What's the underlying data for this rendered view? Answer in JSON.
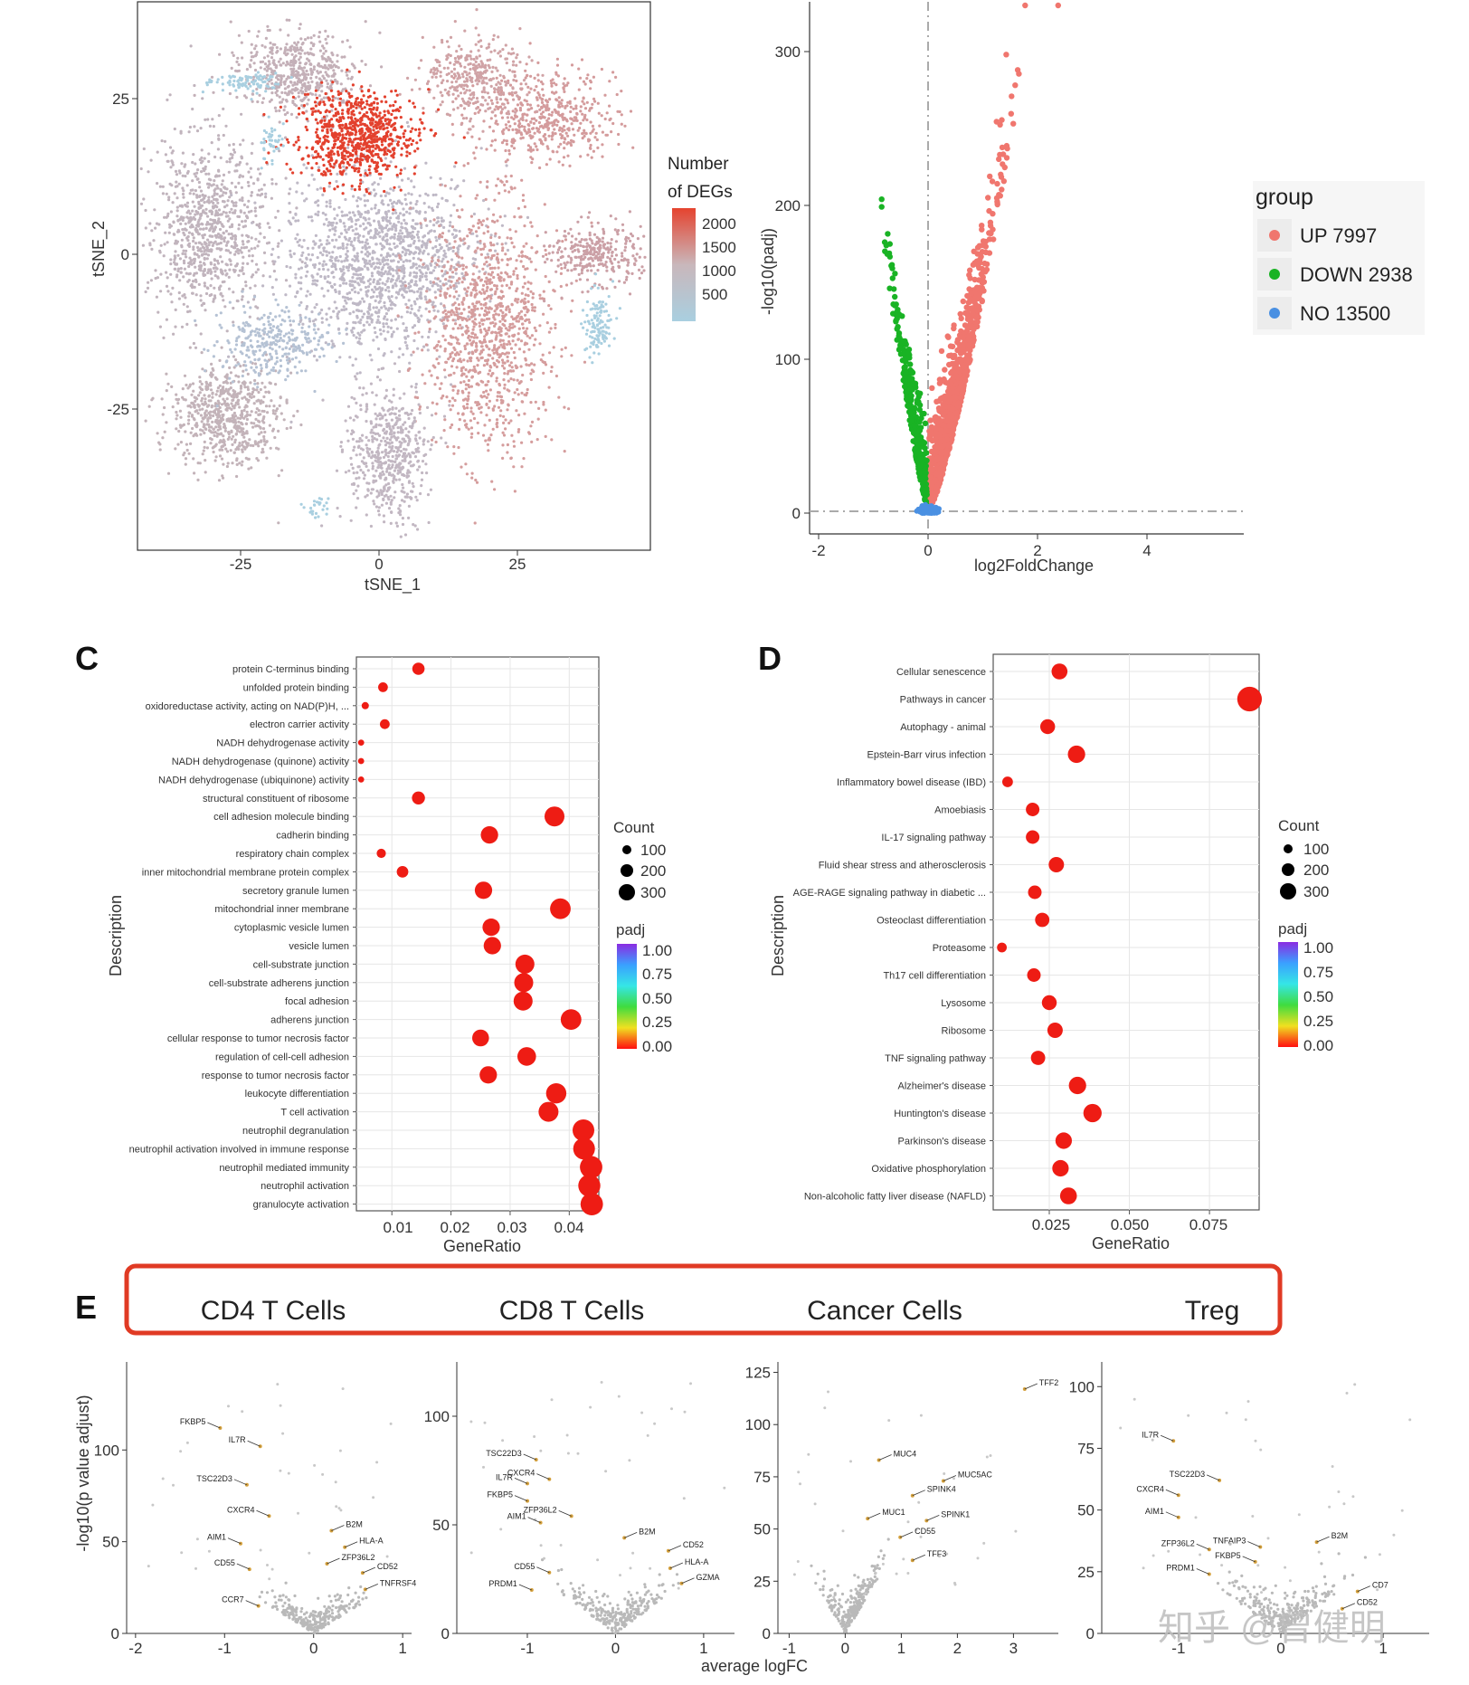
{
  "chart_data": [
    {
      "id": "tsne",
      "type": "scatter",
      "title": "",
      "xlabel": "tSNE_1",
      "ylabel": "tSNE_2",
      "xticks": [
        "-25",
        "0",
        "25"
      ],
      "yticks": [
        "25",
        "0",
        "-25"
      ],
      "colorbar": {
        "title_line1": "Number",
        "title_line2": "of DEGs",
        "ticks": [
          "2000",
          "1500",
          "1000",
          "500"
        ],
        "high_color": "#e5432f",
        "mid_color": "#c9b7bb",
        "low_color": "#a9cfe0"
      }
    },
    {
      "id": "volcano",
      "type": "scatter",
      "title": "",
      "xlabel": "log2FoldChange",
      "ylabel": "-log10(padj)",
      "xticks": [
        "-2",
        "0",
        "2",
        "4"
      ],
      "yticks": [
        "300",
        "200",
        "100",
        "0"
      ],
      "xlim": [
        -2,
        5.7
      ],
      "ylim": [
        0,
        330
      ],
      "legend": {
        "title": "group",
        "position": "right",
        "items": [
          {
            "label": "UP 7997",
            "color": "#f0766e"
          },
          {
            "label": "DOWN 2938",
            "color": "#19b324"
          },
          {
            "label": "NO 13500",
            "color": "#4a90e2"
          }
        ]
      }
    },
    {
      "id": "go",
      "type": "scatter",
      "panel_label": "C",
      "xlabel": "GeneRatio",
      "ylabel": "Description",
      "xticks": [
        "0.01",
        "0.02",
        "0.03",
        "0.04"
      ],
      "xlim": [
        0.004,
        0.045
      ],
      "categories": [
        "protein C-terminus binding",
        "unfolded protein binding",
        "oxidoreductase activity, acting on NAD(P)H, ...",
        "electron carrier activity",
        "NADH dehydrogenase activity",
        "NADH dehydrogenase (quinone) activity",
        "NADH dehydrogenase (ubiquinone) activity",
        "structural constituent of ribosome",
        "cell adhesion molecule binding",
        "cadherin binding",
        "respiratory chain complex",
        "inner mitochondrial membrane protein complex",
        "secretory granule lumen",
        "mitochondrial inner membrane",
        "cytoplasmic vesicle lumen",
        "vesicle lumen",
        "cell-substrate junction",
        "cell-substrate adherens junction",
        "focal adhesion",
        "adherens junction",
        "cellular response to tumor necrosis factor",
        "regulation of cell-cell adhesion",
        "response to tumor necrosis factor",
        "leukocyte differentiation",
        "T cell activation",
        "neutrophil degranulation",
        "neutrophil activation involved in immune response",
        "neutrophil mediated immunity",
        "neutrophil activation",
        "granulocyte activation"
      ],
      "values": [
        0.0145,
        0.0085,
        0.0055,
        0.0088,
        0.0048,
        0.0048,
        0.0048,
        0.0145,
        0.0375,
        0.0265,
        0.0082,
        0.0118,
        0.0255,
        0.0385,
        0.0268,
        0.027,
        0.0325,
        0.0323,
        0.0322,
        0.0403,
        0.025,
        0.0328,
        0.0263,
        0.0378,
        0.0365,
        0.0424,
        0.0425,
        0.0437,
        0.0434,
        0.0438
      ],
      "count": [
        60,
        30,
        10,
        30,
        5,
        5,
        5,
        70,
        210,
        150,
        25,
        50,
        150,
        230,
        150,
        150,
        190,
        190,
        190,
        230,
        140,
        180,
        150,
        220,
        210,
        260,
        260,
        280,
        270,
        280
      ],
      "legend_count": {
        "title": "Count",
        "items": [
          "100",
          "200",
          "300"
        ]
      },
      "legend_padj": {
        "title": "padj",
        "ticks": [
          "1.00",
          "0.75",
          "0.50",
          "0.25",
          "0.00"
        ]
      }
    },
    {
      "id": "kegg",
      "type": "scatter",
      "panel_label": "D",
      "xlabel": "GeneRatio",
      "ylabel": "Description",
      "xticks": [
        "0.025",
        "0.050",
        "0.075"
      ],
      "xlim": [
        0.0075,
        0.0905
      ],
      "categories": [
        "Cellular senescence",
        "Pathways in cancer",
        "Autophagy - animal",
        "Epstein-Barr virus infection",
        "Inflammatory bowel disease (IBD)",
        "Amoebiasis",
        "IL-17 signaling pathway",
        "Fluid shear stress and atherosclerosis",
        "AGE-RAGE signaling pathway in diabetic ...",
        "Osteoclast differentiation",
        "Proteasome",
        "Th17 cell differentiation",
        "Lysosome",
        "Ribosome",
        "TNF signaling pathway",
        "Alzheimer's disease",
        "Huntington's disease",
        "Parkinson's disease",
        "Oxidative phosphorylation",
        "Non-alcoholic fatty liver disease (NAFLD)"
      ],
      "values": [
        0.0282,
        0.0875,
        0.0245,
        0.0335,
        0.012,
        0.0198,
        0.0198,
        0.0272,
        0.0205,
        0.0228,
        0.0102,
        0.0202,
        0.025,
        0.0268,
        0.0215,
        0.0338,
        0.0385,
        0.0295,
        0.0285,
        0.031
      ],
      "count": [
        120,
        350,
        100,
        150,
        40,
        80,
        80,
        110,
        80,
        90,
        30,
        80,
        100,
        110,
        90,
        150,
        170,
        130,
        130,
        140
      ],
      "legend_count": {
        "title": "Count",
        "items": [
          "100",
          "200",
          "300"
        ]
      },
      "legend_padj": {
        "title": "padj",
        "ticks": [
          "1.00",
          "0.75",
          "0.50",
          "0.25",
          "0.00"
        ]
      }
    },
    {
      "id": "cd4",
      "type": "scatter",
      "title": "CD4 T Cells",
      "xticks": [
        "-2",
        "-1",
        "0",
        "1"
      ],
      "yticks": [
        "100",
        "50",
        "0"
      ],
      "xlim": [
        -2.1,
        1.1
      ],
      "ylim": [
        0,
        148
      ],
      "labels": [
        {
          "text": "FKBP5",
          "x": -1.05,
          "y": 112
        },
        {
          "text": "IL7R",
          "x": -0.6,
          "y": 102
        },
        {
          "text": "TSC22D3",
          "x": -0.75,
          "y": 81
        },
        {
          "text": "CXCR4",
          "x": -0.5,
          "y": 64
        },
        {
          "text": "B2M",
          "x": 0.2,
          "y": 56
        },
        {
          "text": "AIM1",
          "x": -0.82,
          "y": 49
        },
        {
          "text": "HLA-A",
          "x": 0.35,
          "y": 47
        },
        {
          "text": "ZFP36L2",
          "x": 0.15,
          "y": 38
        },
        {
          "text": "CD55",
          "x": -0.72,
          "y": 35
        },
        {
          "text": "CD52",
          "x": 0.55,
          "y": 33
        },
        {
          "text": "TNFRSF4",
          "x": 0.58,
          "y": 24
        },
        {
          "text": "CCR7",
          "x": -0.62,
          "y": 15
        }
      ]
    },
    {
      "id": "cd8",
      "type": "scatter",
      "title": "CD8 T Cells",
      "xticks": [
        "-1",
        "0",
        "1"
      ],
      "yticks": [
        "100",
        "50",
        "0"
      ],
      "xlim": [
        -1.8,
        1.35
      ],
      "ylim": [
        0,
        125
      ],
      "labels": [
        {
          "text": "TSC22D3",
          "x": -0.9,
          "y": 80
        },
        {
          "text": "CXCR4",
          "x": -0.75,
          "y": 71
        },
        {
          "text": "IL7R",
          "x": -1.0,
          "y": 69
        },
        {
          "text": "FKBP5",
          "x": -1.0,
          "y": 61
        },
        {
          "text": "ZFP36L2",
          "x": -0.5,
          "y": 54
        },
        {
          "text": "AIM1",
          "x": -0.85,
          "y": 51
        },
        {
          "text": "B2M",
          "x": 0.1,
          "y": 44
        },
        {
          "text": "CD52",
          "x": 0.6,
          "y": 38
        },
        {
          "text": "HLA-A",
          "x": 0.62,
          "y": 30
        },
        {
          "text": "CD55",
          "x": -0.75,
          "y": 28
        },
        {
          "text": "GZMA",
          "x": 0.75,
          "y": 23
        },
        {
          "text": "PRDM1",
          "x": -0.95,
          "y": 20
        }
      ]
    },
    {
      "id": "cancer",
      "type": "scatter",
      "title": "Cancer  Cells",
      "xlabel": "average logFC",
      "xticks": [
        "-1",
        "0",
        "1",
        "2",
        "3"
      ],
      "yticks": [
        "125",
        "100",
        "75",
        "50",
        "25",
        "0"
      ],
      "xlim": [
        -1.2,
        3.8
      ],
      "ylim": [
        0,
        130
      ],
      "labels": [
        {
          "text": "TFF2",
          "x": 3.2,
          "y": 117
        },
        {
          "text": "MUC4",
          "x": 0.6,
          "y": 83
        },
        {
          "text": "MUC5AC",
          "x": 1.75,
          "y": 73
        },
        {
          "text": "SPINK4",
          "x": 1.2,
          "y": 66
        },
        {
          "text": "MUC1",
          "x": 0.4,
          "y": 55
        },
        {
          "text": "SPINK1",
          "x": 1.45,
          "y": 54
        },
        {
          "text": "CD55",
          "x": 0.98,
          "y": 46
        },
        {
          "text": "TFF3",
          "x": 1.2,
          "y": 35
        }
      ]
    },
    {
      "id": "treg",
      "type": "scatter",
      "title": "Treg",
      "xticks": [
        "-1",
        "0",
        "1"
      ],
      "yticks": [
        "100",
        "75",
        "50",
        "25",
        "0"
      ],
      "xlim": [
        -1.75,
        1.45
      ],
      "ylim": [
        0,
        110
      ],
      "labels": [
        {
          "text": "IL7R",
          "x": -1.05,
          "y": 78
        },
        {
          "text": "TSC22D3",
          "x": -0.6,
          "y": 62
        },
        {
          "text": "CXCR4",
          "x": -1.0,
          "y": 56
        },
        {
          "text": "AIM1",
          "x": -1.0,
          "y": 47
        },
        {
          "text": "B2M",
          "x": 0.35,
          "y": 37
        },
        {
          "text": "ZFP36L2",
          "x": -0.7,
          "y": 34
        },
        {
          "text": "TNFAIP3",
          "x": -0.2,
          "y": 35
        },
        {
          "text": "FKBP5",
          "x": -0.25,
          "y": 29
        },
        {
          "text": "PRDM1",
          "x": -0.7,
          "y": 24
        },
        {
          "text": "CD7",
          "x": 0.75,
          "y": 17
        },
        {
          "text": "CD52",
          "x": 0.6,
          "y": 10
        }
      ],
      "ylabel": "-log10(p value adjust)"
    }
  ],
  "panel_labels": {
    "c": "C",
    "d": "D",
    "e": "E"
  },
  "watermark": "知乎 @曾健明"
}
